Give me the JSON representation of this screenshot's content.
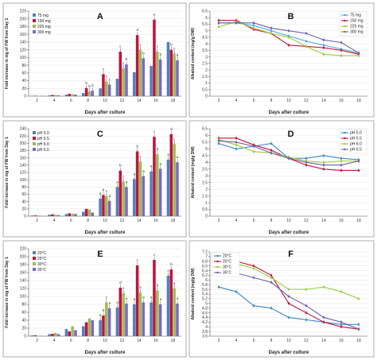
{
  "chart_data": [
    {
      "panel": "A",
      "type": "bar",
      "ylabel": "Fold increase in mg of FW from Day 1",
      "xlabel": "Days after culture",
      "categories": [
        "2",
        "4",
        "6",
        "8",
        "10",
        "12",
        "14",
        "16",
        "18"
      ],
      "ylim": [
        0,
        220
      ],
      "yticks": [
        0,
        20,
        40,
        60,
        80,
        100,
        120,
        140,
        160,
        180,
        200,
        220
      ],
      "legend": "top-left",
      "grid": true,
      "series": [
        {
          "name": "75 mg",
          "color": "#4f81bd",
          "values": [
            1,
            2,
            4,
            8,
            20,
            45,
            62,
            78,
            140
          ],
          "labels": [
            "",
            "",
            "",
            "",
            "",
            "",
            "",
            "",
            ""
          ]
        },
        {
          "name": "150 mg",
          "color": "#c0143c",
          "values": [
            1,
            3,
            6,
            21,
            57,
            115,
            158,
            198,
            120
          ],
          "labels": [
            "",
            "",
            "",
            "b",
            "c",
            "c",
            "d",
            "e",
            "b"
          ]
        },
        {
          "name": "225 mg",
          "color": "#9bbb59",
          "values": [
            1,
            3,
            5,
            12,
            38,
            72,
            120,
            115,
            110
          ],
          "labels": [
            "",
            "",
            "",
            "b",
            "c",
            "c",
            "c",
            "c",
            "c"
          ]
        },
        {
          "name": "300 mg",
          "color": "#7b68c4",
          "values": [
            1,
            2,
            4,
            14,
            30,
            82,
            98,
            95,
            93
          ],
          "labels": [
            "",
            "",
            "",
            "b",
            "c",
            "b",
            "b",
            "b",
            "b"
          ]
        }
      ]
    },
    {
      "panel": "B",
      "type": "line",
      "ylabel": "Alkaloid content (mg/g DW)",
      "xlabel": "Days after culture",
      "x": [
        2,
        4,
        6,
        8,
        10,
        12,
        14,
        16,
        18
      ],
      "ylim": [
        0,
        6.5
      ],
      "yticks": [
        0,
        0.5,
        1,
        1.5,
        2,
        2.5,
        3,
        3.5,
        4,
        4.5,
        5,
        5.5,
        6,
        6.5
      ],
      "legend": "top-right",
      "grid": true,
      "series": [
        {
          "name": "75 mg",
          "color": "#4aa8e0",
          "values": [
            5.6,
            5.6,
            5.4,
            5.0,
            4.6,
            4.2,
            3.9,
            3.6,
            3.3
          ]
        },
        {
          "name": "150 mg",
          "color": "#c0143c",
          "values": [
            5.8,
            5.8,
            5.1,
            4.8,
            3.9,
            3.8,
            3.7,
            3.5,
            3.2
          ]
        },
        {
          "name": "225 mg",
          "color": "#9bcb3a",
          "values": [
            5.3,
            5.7,
            5.2,
            4.8,
            4.5,
            3.8,
            3.2,
            3.1,
            3.1
          ]
        },
        {
          "name": "300 mg",
          "color": "#6d5fae",
          "values": [
            5.6,
            5.6,
            5.6,
            5.2,
            5.0,
            4.8,
            4.3,
            4.1,
            3.3
          ]
        }
      ]
    },
    {
      "panel": "C",
      "type": "bar",
      "ylabel": "Fold increase in mg of FW from Day 1",
      "xlabel": "Days after culture",
      "categories": [
        "2",
        "4",
        "6",
        "8",
        "10",
        "12",
        "14",
        "16",
        "18"
      ],
      "ylim": [
        0,
        240
      ],
      "yticks": [
        0,
        20,
        40,
        60,
        80,
        100,
        120,
        140,
        160,
        180,
        200,
        220,
        240
      ],
      "legend": "top-left",
      "grid": true,
      "series": [
        {
          "name": "pH 5.0",
          "color": "#4f81bd",
          "values": [
            2,
            4,
            6,
            12,
            48,
            80,
            102,
            123,
            155
          ],
          "labels": [
            "",
            "",
            "",
            "",
            "a",
            "a",
            "a",
            "a",
            "a"
          ]
        },
        {
          "name": "pH 5.5",
          "color": "#c0143c",
          "values": [
            2,
            5,
            8,
            20,
            58,
            125,
            178,
            218,
            225
          ],
          "labels": [
            "",
            "",
            "",
            "",
            "b",
            "b",
            "b",
            "c",
            "d"
          ]
        },
        {
          "name": "pH 6.0",
          "color": "#9bbb59",
          "values": [
            2,
            4,
            7,
            18,
            55,
            95,
            150,
            170,
            198
          ],
          "labels": [
            "",
            "",
            "",
            "",
            "c",
            "c",
            "c",
            "b",
            "c"
          ]
        },
        {
          "name": "pH 6.5",
          "color": "#7b68c4",
          "values": [
            1,
            3,
            6,
            10,
            42,
            80,
            110,
            130,
            148
          ],
          "labels": [
            "",
            "",
            "",
            "",
            "a",
            "a",
            "a",
            "a",
            "a"
          ]
        }
      ]
    },
    {
      "panel": "D",
      "type": "line",
      "ylabel": "Alkaloid content (mg/g DW)",
      "xlabel": "Days after culture",
      "x": [
        2,
        4,
        6,
        8,
        10,
        12,
        14,
        16,
        18
      ],
      "ylim": [
        0,
        6.5
      ],
      "yticks": [
        0,
        0.5,
        1,
        1.5,
        2,
        2.5,
        3,
        3.5,
        4,
        4.5,
        5,
        5.5,
        6,
        6.5
      ],
      "legend": "top-right",
      "grid": true,
      "series": [
        {
          "name": "pH 5.0",
          "color": "#3a86c8",
          "values": [
            5.4,
            5.0,
            5.2,
            5.4,
            4.3,
            4.3,
            4.5,
            4.3,
            4.2
          ]
        },
        {
          "name": "pH 5.5",
          "color": "#c0143c",
          "values": [
            5.8,
            5.8,
            5.3,
            4.9,
            4.3,
            3.8,
            3.5,
            3.4,
            3.4
          ]
        },
        {
          "name": "pH 6.0",
          "color": "#9bcb3a",
          "values": [
            5.7,
            5.3,
            4.8,
            4.7,
            4.4,
            4.1,
            4.0,
            4.1,
            4.1
          ]
        },
        {
          "name": "pH 6.5",
          "color": "#6d5fae",
          "values": [
            5.6,
            5.5,
            5.2,
            4.7,
            4.3,
            4.0,
            3.8,
            3.8,
            4.1
          ]
        }
      ]
    },
    {
      "panel": "E",
      "type": "bar",
      "ylabel": "Fold increase in mg of FW from Day 1",
      "xlabel": "Days after culture",
      "categories": [
        "2",
        "4",
        "6",
        "8",
        "10",
        "12",
        "14",
        "16",
        "18"
      ],
      "ylim": [
        0,
        220
      ],
      "yticks": [
        0,
        20,
        40,
        60,
        80,
        100,
        120,
        140,
        160,
        180,
        200,
        220
      ],
      "legend": "top-left",
      "grid": true,
      "series": [
        {
          "name": "20°C",
          "color": "#4f81bd",
          "values": [
            2,
            5,
            18,
            25,
            40,
            72,
            80,
            85,
            152
          ],
          "labels": [
            "",
            "",
            "",
            "",
            "a",
            "a",
            "a",
            "a",
            "c"
          ]
        },
        {
          "name": "25°C",
          "color": "#c0143c",
          "values": [
            2,
            6,
            12,
            35,
            52,
            122,
            178,
            192,
            168
          ],
          "labels": [
            "",
            "",
            "",
            "",
            "b",
            "d",
            "c",
            "c",
            "b"
          ]
        },
        {
          "name": "30°C",
          "color": "#9bbb59",
          "values": [
            1,
            8,
            25,
            45,
            85,
            108,
            110,
            115,
            120
          ],
          "labels": [
            "",
            "",
            "",
            "",
            "c",
            "c",
            "b",
            "b",
            "a"
          ]
        },
        {
          "name": "35°C",
          "color": "#7b68c4",
          "values": [
            1,
            5,
            15,
            40,
            70,
            82,
            85,
            80,
            82
          ],
          "labels": [
            "",
            "",
            "",
            "",
            "a",
            "a",
            "a",
            "a",
            "a"
          ]
        }
      ]
    },
    {
      "panel": "F",
      "type": "line",
      "ylabel": "Alkaloid content (mg/g DW)",
      "xlabel": "Days after culture",
      "x": [
        2,
        4,
        6,
        8,
        10,
        12,
        14,
        16,
        18
      ],
      "ylim": [
        3.6,
        7.2
      ],
      "yticks": [
        3.6,
        3.8,
        4,
        4.2,
        4.4,
        4.6,
        4.8,
        5,
        5.2,
        5.4,
        5.6,
        5.8,
        6,
        6.2,
        6.4,
        6.6,
        6.8,
        7,
        7.2
      ],
      "legend": "top-left",
      "grid": true,
      "series": [
        {
          "name": "20°C",
          "color": "#3a86c8",
          "values": [
            5.7,
            5.5,
            4.9,
            4.8,
            4.4,
            4.3,
            4.2,
            4.1,
            4.1
          ]
        },
        {
          "name": "25°C",
          "color": "#c0143c",
          "values": [
            6.8,
            6.8,
            6.6,
            6.2,
            5.0,
            4.6,
            4.2,
            4.0,
            3.9
          ]
        },
        {
          "name": "30°C",
          "color": "#9bcb3a",
          "values": [
            6.6,
            6.7,
            6.5,
            6.1,
            5.6,
            5.6,
            5.7,
            5.5,
            5.2
          ]
        },
        {
          "name": "35°C",
          "color": "#6d5fae",
          "values": [
            6.3,
            6.3,
            6.1,
            5.9,
            5.3,
            4.9,
            4.4,
            4.2,
            3.9
          ]
        }
      ]
    }
  ]
}
